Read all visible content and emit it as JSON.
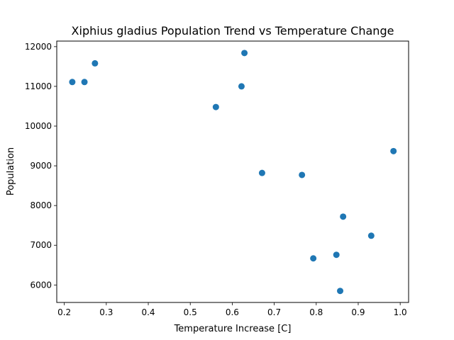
{
  "chart_data": {
    "type": "scatter",
    "title": "Xiphius gladius Population Trend vs Temperature Change",
    "xlabel": "Temperature Increase [C]",
    "ylabel": "Population",
    "xlim": [
      0.182,
      1.02
    ],
    "ylim": [
      5560,
      12140
    ],
    "xticks": [
      0.2,
      0.3,
      0.4,
      0.5,
      0.6,
      0.7,
      0.8,
      0.9,
      1.0
    ],
    "xtick_labels": [
      "0.2",
      "0.3",
      "0.4",
      "0.5",
      "0.6",
      "0.7",
      "0.8",
      "0.9",
      "1.0"
    ],
    "yticks": [
      6000,
      7000,
      8000,
      9000,
      10000,
      11000,
      12000
    ],
    "ytick_labels": [
      "6000",
      "7000",
      "8000",
      "9000",
      "10000",
      "11000",
      "12000"
    ],
    "grid": false,
    "color": "#1f77b4",
    "points": [
      {
        "x": 0.219,
        "y": 11110
      },
      {
        "x": 0.248,
        "y": 11110
      },
      {
        "x": 0.273,
        "y": 11580
      },
      {
        "x": 0.561,
        "y": 10480
      },
      {
        "x": 0.622,
        "y": 11000
      },
      {
        "x": 0.629,
        "y": 11840
      },
      {
        "x": 0.671,
        "y": 8820
      },
      {
        "x": 0.766,
        "y": 8770
      },
      {
        "x": 0.793,
        "y": 6670
      },
      {
        "x": 0.848,
        "y": 6760
      },
      {
        "x": 0.857,
        "y": 5850
      },
      {
        "x": 0.864,
        "y": 7720
      },
      {
        "x": 0.931,
        "y": 7240
      },
      {
        "x": 0.984,
        "y": 9370
      }
    ]
  }
}
